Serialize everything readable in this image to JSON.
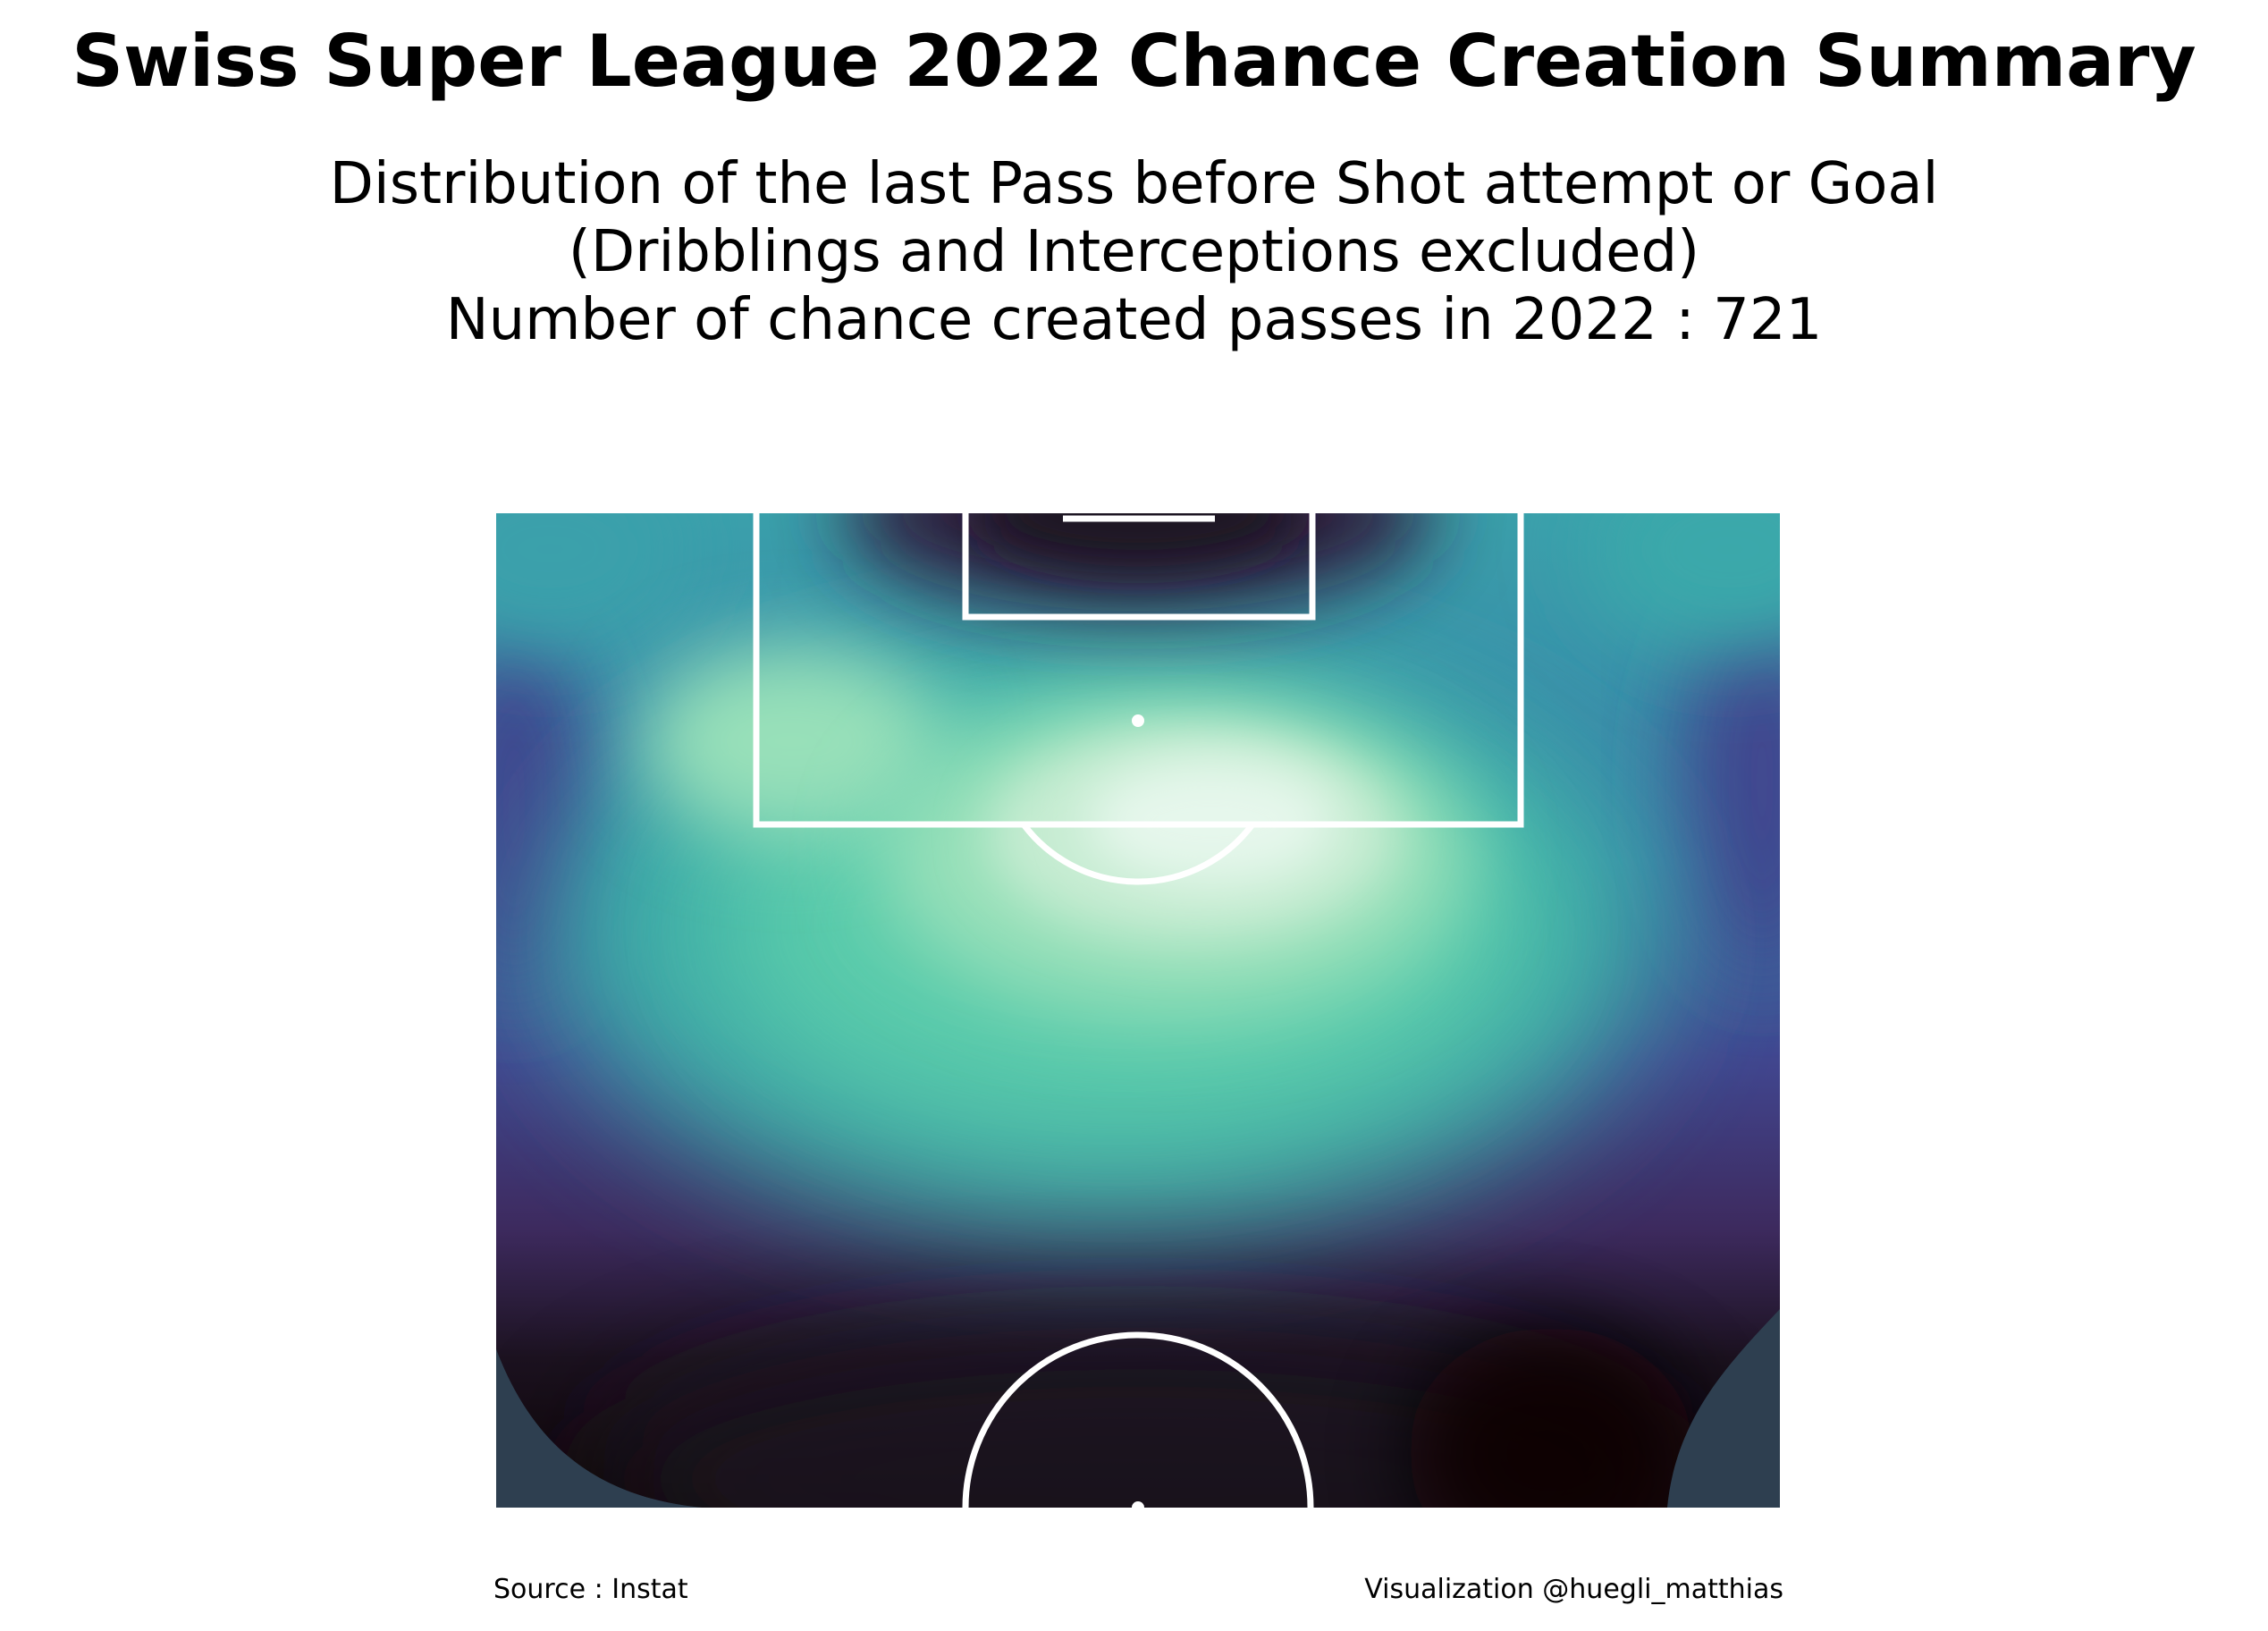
{
  "title": "Swiss Super League 2022 Chance Creation Summary",
  "subtitle": {
    "line1": "Distribution of the last Pass before Shot attempt or Goal",
    "line2": "(Dribblings and Interceptions excluded)",
    "line3": "Number of chance created passes in 2022 : 721"
  },
  "footer": {
    "source": "Source : Instat",
    "credit": "Visualization @huegli_matthias"
  },
  "colors": {
    "background": "#ffffff",
    "pitch_lines": "#ffffff",
    "outside_density": "#2e3f50",
    "colormap": [
      "#0d0405",
      "#1c1220",
      "#2d1e3e",
      "#3d2a5e",
      "#41468f",
      "#3a6aa8",
      "#3a8fa8",
      "#3db3a8",
      "#5fd1ac",
      "#98e0b9",
      "#c6ecd2",
      "#e6f7ec"
    ]
  },
  "chart_data": {
    "type": "heatmap",
    "description_kind": "kernel density of last-pass locations on attacking half of a football pitch",
    "total_passes": 721,
    "pitch_view": "vertical half pitch, goal at top",
    "density_hotspots": [
      {
        "zone": "edge of penalty area, slightly right of center (arc region)",
        "relative_density": 1.0
      },
      {
        "zone": "left side inside penalty box, near left edge of 18-yard box",
        "relative_density": 0.8
      },
      {
        "zone": "central zone between box and halfway line",
        "relative_density": 0.6
      },
      {
        "zone": "near goal line in 6-yard box",
        "relative_density": 0.15
      },
      {
        "zone": "around halfway line / center circle",
        "relative_density": 0.05
      }
    ]
  }
}
